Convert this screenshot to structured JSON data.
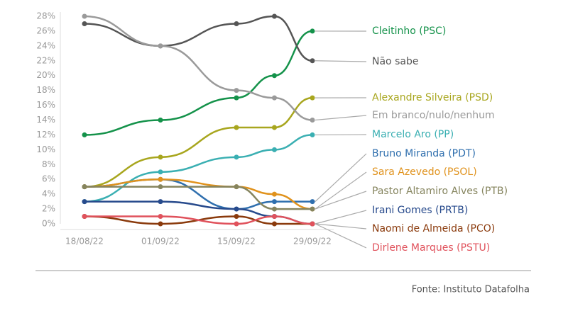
{
  "chart_data": {
    "type": "line",
    "categories": [
      "18/08/22",
      "01/09/22",
      "15/09/22",
      null,
      "29/09/22"
    ],
    "ylim": [
      0,
      28
    ],
    "yticks": [
      {
        "value": 0,
        "label": "0%"
      },
      {
        "value": 2,
        "label": "2%"
      },
      {
        "value": 4,
        "label": "4%"
      },
      {
        "value": 6,
        "label": "6%"
      },
      {
        "value": 8,
        "label": "8%"
      },
      {
        "value": 10,
        "label": "10%"
      },
      {
        "value": 12,
        "label": "12%"
      },
      {
        "value": 14,
        "label": "14%"
      },
      {
        "value": 16,
        "label": "16%"
      },
      {
        "value": 18,
        "label": "18%"
      },
      {
        "value": 20,
        "label": "20%"
      },
      {
        "value": 22,
        "label": "22%"
      },
      {
        "value": 24,
        "label": "24%"
      },
      {
        "value": 26,
        "label": "26%"
      },
      {
        "value": 28,
        "label": "28%"
      }
    ],
    "series": [
      {
        "name": "Cleitinho (PSC)",
        "color": "#14924a",
        "values": [
          12,
          14,
          17,
          20,
          26
        ]
      },
      {
        "name": "Não sabe",
        "color": "#555555",
        "values": [
          27,
          24,
          27,
          28,
          22
        ]
      },
      {
        "name": "Alexandre Silveira (PSD)",
        "color": "#a8a61e",
        "values": [
          5,
          9,
          13,
          13,
          17
        ]
      },
      {
        "name": "Em branco/nulo/nenhum",
        "color": "#9a9a9a",
        "values": [
          28,
          24,
          18,
          17,
          14
        ]
      },
      {
        "name": "Marcelo Aro (PP)",
        "color": "#3aafb2",
        "values": [
          3,
          7,
          9,
          10,
          12
        ]
      },
      {
        "name": "Bruno Miranda (PDT)",
        "color": "#2f6fae",
        "values": [
          5,
          6,
          2,
          3,
          3
        ]
      },
      {
        "name": "Sara Azevedo (PSOL)",
        "color": "#e0921c",
        "values": [
          5,
          6,
          5,
          4,
          2
        ]
      },
      {
        "name": "Pastor Altamiro Alves (PTB)",
        "color": "#85845e",
        "values": [
          5,
          5,
          5,
          2,
          2
        ]
      },
      {
        "name": "Irani Gomes (PRTB)",
        "color": "#274a8c",
        "values": [
          3,
          3,
          2,
          1,
          0
        ]
      },
      {
        "name": "Naomi de Almeida (PCO)",
        "color": "#8a3a0c",
        "values": [
          1,
          0,
          1,
          0,
          0
        ]
      },
      {
        "name": "Dirlene Marques (PSTU)",
        "color": "#e0525c",
        "values": [
          1,
          1,
          0,
          1,
          0
        ]
      }
    ],
    "source": "Fonte: Instituto Datafolha"
  }
}
